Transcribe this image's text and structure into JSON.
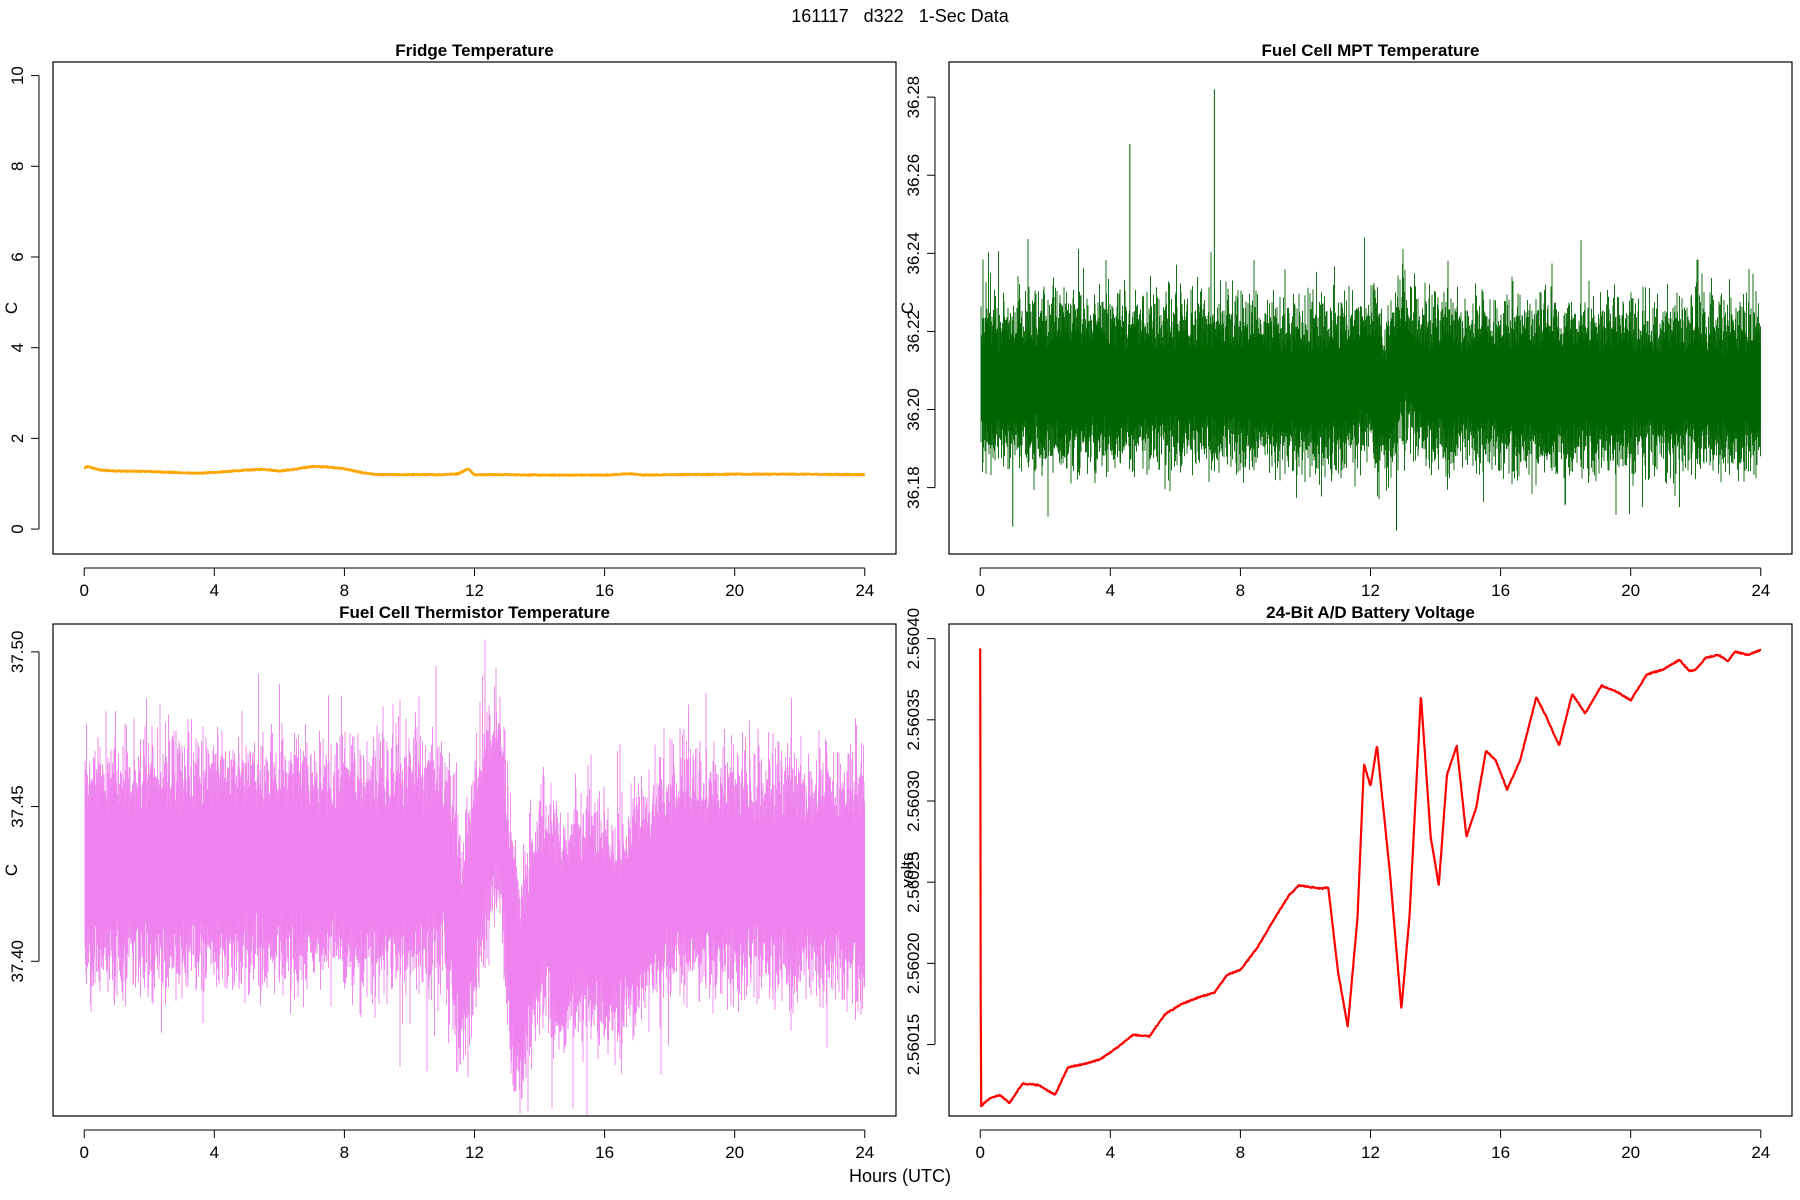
{
  "figure": {
    "title": "161117   d322   1-Sec Data",
    "xlabel": "Hours (UTC)"
  },
  "chart_data": [
    {
      "type": "line",
      "title": "Fridge Temperature",
      "ylabel": "C",
      "xlabel": "",
      "color": "#FFA500",
      "xlim": [
        -0.96,
        24.96
      ],
      "ylim": [
        -0.55,
        10.3
      ],
      "xticks": [
        0,
        4,
        8,
        12,
        16,
        20,
        24
      ],
      "yticks": [
        0,
        2,
        4,
        6,
        8,
        10
      ],
      "ytick_labels": [
        "0",
        "2",
        "4",
        "6",
        "8",
        "10"
      ],
      "band": 0.02,
      "x": [
        0,
        0.1,
        0.5,
        1,
        2,
        3,
        3.5,
        4,
        5,
        5.5,
        6,
        6.5,
        7,
        7.5,
        8,
        8.5,
        9,
        10,
        11,
        11.5,
        11.8,
        12,
        13,
        14,
        15,
        16,
        16.8,
        17.2,
        18,
        20,
        22,
        24
      ],
      "values": [
        1.34,
        1.38,
        1.3,
        1.28,
        1.27,
        1.24,
        1.23,
        1.25,
        1.3,
        1.32,
        1.28,
        1.32,
        1.38,
        1.37,
        1.33,
        1.25,
        1.2,
        1.2,
        1.2,
        1.22,
        1.33,
        1.2,
        1.2,
        1.19,
        1.19,
        1.19,
        1.22,
        1.19,
        1.2,
        1.21,
        1.21,
        1.2
      ]
    },
    {
      "type": "line",
      "title": "Fuel Cell MPT Temperature",
      "ylabel": "C",
      "xlabel": "",
      "color": "#006400",
      "xlim": [
        -0.96,
        24.96
      ],
      "ylim": [
        36.163,
        36.289
      ],
      "xticks": [
        0,
        4,
        8,
        12,
        16,
        20,
        24
      ],
      "yticks": [
        36.18,
        36.2,
        36.22,
        36.24,
        36.26,
        36.28
      ],
      "ytick_labels": [
        "36.18",
        "36.20",
        "36.22",
        "36.24",
        "36.26",
        "36.28"
      ],
      "band": 0.012,
      "x": [
        0,
        2,
        4,
        6,
        8,
        10,
        11,
        11.5,
        12,
        12.5,
        13,
        13.5,
        14,
        15,
        16,
        18,
        20,
        22,
        24
      ],
      "values": [
        36.207,
        36.207,
        36.207,
        36.207,
        36.207,
        36.206,
        36.206,
        36.208,
        36.209,
        36.203,
        36.213,
        36.208,
        36.207,
        36.207,
        36.206,
        36.206,
        36.206,
        36.206,
        36.206
      ],
      "spikes": [
        [
          7.2,
          36.282
        ],
        [
          12.8,
          36.169
        ],
        [
          1.0,
          36.17
        ],
        [
          4.6,
          36.268
        ]
      ]
    },
    {
      "type": "line",
      "title": "Fuel Cell Thermistor Temperature",
      "ylabel": "C",
      "xlabel": "",
      "color": "#EE82EE",
      "xlim": [
        -0.96,
        24.96
      ],
      "ylim": [
        37.35,
        37.509
      ],
      "xticks": [
        0,
        4,
        8,
        12,
        16,
        20,
        24
      ],
      "yticks": [
        37.4,
        37.45,
        37.5
      ],
      "ytick_labels": [
        "37.40",
        "37.45",
        "37.50"
      ],
      "band": 0.022,
      "x": [
        0,
        2,
        4,
        6,
        8,
        10,
        11,
        11.2,
        11.6,
        12,
        12.4,
        12.8,
        13.1,
        13.4,
        13.8,
        14.2,
        14.6,
        15,
        15.5,
        16,
        16.5,
        17,
        17.5,
        18,
        20,
        22,
        24
      ],
      "values": [
        37.43,
        37.431,
        37.432,
        37.432,
        37.431,
        37.431,
        37.433,
        37.428,
        37.4,
        37.425,
        37.445,
        37.45,
        37.41,
        37.39,
        37.41,
        37.42,
        37.405,
        37.415,
        37.415,
        37.41,
        37.41,
        37.418,
        37.422,
        37.428,
        37.429,
        37.428,
        37.427
      ]
    },
    {
      "type": "line",
      "title": "24-Bit A/D Battery Voltage",
      "ylabel": "volts",
      "xlabel": "",
      "color": "#FF0000",
      "xlim": [
        -0.96,
        24.96
      ],
      "ylim": [
        2.560106,
        2.560409
      ],
      "xticks": [
        0,
        4,
        8,
        12,
        16,
        20,
        24
      ],
      "yticks": [
        2.56015,
        2.5602,
        2.56025,
        2.5603,
        2.56035,
        2.5604
      ],
      "ytick_labels": [
        "2.56015",
        "2.56020",
        "2.56025",
        "2.56030",
        "2.56035",
        "2.56040"
      ],
      "band": 7e-07,
      "x": [
        0,
        0.02,
        0.3,
        0.6,
        0.9,
        1.3,
        1.8,
        2.3,
        2.7,
        3.2,
        3.7,
        4.2,
        4.7,
        5.2,
        5.7,
        6.2,
        6.7,
        7.2,
        7.6,
        8.0,
        8.5,
        9.0,
        9.5,
        9.8,
        10.5,
        10.7,
        11.0,
        11.3,
        11.6,
        11.8,
        12.0,
        12.2,
        12.6,
        12.95,
        13.2,
        13.55,
        13.85,
        14.1,
        14.35,
        14.65,
        14.95,
        15.25,
        15.55,
        15.85,
        16.2,
        16.6,
        17.1,
        17.4,
        17.8,
        18.2,
        18.6,
        19.1,
        19.6,
        20.0,
        20.5,
        21.0,
        21.5,
        21.8,
        22.0,
        22.3,
        22.7,
        23.0,
        23.2,
        23.6,
        24.0
      ],
      "values": [
        2.560394,
        2.560112,
        2.560117,
        2.560119,
        2.560114,
        2.560126,
        2.560125,
        2.560119,
        2.560136,
        2.560138,
        2.560141,
        2.560148,
        2.560156,
        2.560155,
        2.560169,
        2.560175,
        2.560179,
        2.560182,
        2.560193,
        2.560196,
        2.560209,
        2.560226,
        2.560242,
        2.560248,
        2.560246,
        2.560247,
        2.560195,
        2.560161,
        2.560228,
        2.560323,
        2.560309,
        2.560334,
        2.560255,
        2.560172,
        2.560229,
        2.560365,
        2.560278,
        2.560248,
        2.560316,
        2.560334,
        2.560278,
        2.560296,
        2.560331,
        2.560325,
        2.560307,
        2.560325,
        2.560364,
        2.560352,
        2.560334,
        2.560366,
        2.560354,
        2.560371,
        2.560367,
        2.560362,
        2.560378,
        2.560381,
        2.560387,
        2.56038,
        2.560381,
        2.560388,
        2.56039,
        2.560386,
        2.560392,
        2.56039,
        2.560393
      ]
    }
  ]
}
